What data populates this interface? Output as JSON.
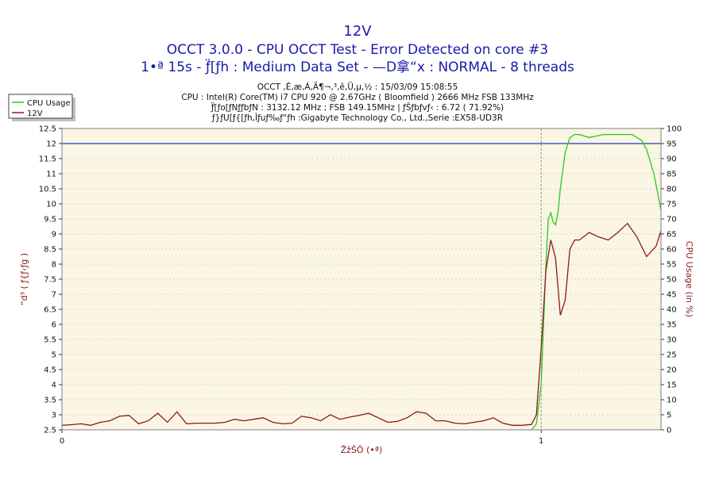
{
  "chart_data": {
    "type": "line",
    "title": "12V",
    "subtitle": "OCCT 3.0.0 - CPU OCCT Test - Error Detected on core #3",
    "subtitle2": "1•ª 15s - ƒ̈[ƒh : Medium Data Set - —D拿“x : NORMAL - 8 threads",
    "info_lines": [
      "OCCT ‚É‚æ‚Á‚Ä¶¬‚³‚ê‚Ü‚µ‚½ : 15/03/09 15:08:55",
      "CPU : Intel(R) Core(TM) i7 CPU 920 @ 2.67GHz ( Bloomfield ) 2666 MHz FSB 133MHz",
      "ƒ̈[ƒo[ƒNƒ̧ƒbƒN : 3132.12 MHz ; FSB 149.15MHz | ƒŠƒbƒvƒ‹ : 6.72 ( 71.92%)",
      "ƒ}ƒU[ƒ{[ƒh,Ìƒuƒ‰ƒ“ƒh :Gigabyte Technology Co., Ltd.,Serie :EX58-UD3R"
    ],
    "xlabel": "ŽžŠÔ (•ª)",
    "ylabel_left": "“d³ ( ƒ{ƒ‹ƒg )",
    "ylabel_right": "CPU Usage (in %)",
    "xlim": [
      0,
      1.25
    ],
    "x_ticks": [
      "0",
      "1"
    ],
    "x_tick_values": [
      0,
      1
    ],
    "ylim_left": [
      2.5,
      12.5
    ],
    "left_ticks": [
      "2.5",
      "3",
      "3.5",
      "4",
      "4.5",
      "5",
      "5.5",
      "6",
      "6.5",
      "7",
      "7.5",
      "8",
      "8.5",
      "9",
      "9.5",
      "10",
      "10.5",
      "11",
      "11.5",
      "12",
      "12.5"
    ],
    "ylim_right": [
      0,
      100
    ],
    "right_ticks": [
      "0",
      "5",
      "10",
      "15",
      "20",
      "25",
      "30",
      "35",
      "40",
      "45",
      "50",
      "55",
      "60",
      "65",
      "70",
      "75",
      "80",
      "85",
      "90",
      "95",
      "100"
    ],
    "reference_line": {
      "value": 12,
      "color": "#1a3fb4"
    },
    "legend_position": "top-left",
    "grid": true,
    "series": [
      {
        "name": "CPU Usage",
        "axis": "right",
        "color": "#22cc22",
        "x": [
          0.98,
          0.99,
          1.0,
          1.005,
          1.01,
          1.015,
          1.02,
          1.025,
          1.03,
          1.035,
          1.04,
          1.05,
          1.06,
          1.07,
          1.08,
          1.1,
          1.13,
          1.16,
          1.19,
          1.2,
          1.21,
          1.22,
          1.235,
          1.25
        ],
        "y": [
          0,
          2,
          15,
          35,
          55,
          70,
          72,
          69,
          68,
          72,
          80,
          92,
          97,
          98,
          98,
          97,
          98,
          98,
          98,
          97,
          96,
          93,
          85,
          73
        ]
      },
      {
        "name": "12V",
        "axis": "left",
        "color": "#8b1a1a",
        "x": [
          0,
          0.02,
          0.04,
          0.06,
          0.08,
          0.1,
          0.12,
          0.14,
          0.16,
          0.18,
          0.2,
          0.22,
          0.24,
          0.26,
          0.28,
          0.3,
          0.32,
          0.34,
          0.36,
          0.38,
          0.4,
          0.42,
          0.44,
          0.46,
          0.48,
          0.5,
          0.52,
          0.54,
          0.56,
          0.58,
          0.6,
          0.62,
          0.64,
          0.66,
          0.68,
          0.7,
          0.72,
          0.74,
          0.76,
          0.78,
          0.8,
          0.82,
          0.84,
          0.86,
          0.88,
          0.9,
          0.92,
          0.94,
          0.96,
          0.98,
          0.99,
          1.0,
          1.01,
          1.02,
          1.03,
          1.04,
          1.05,
          1.06,
          1.07,
          1.08,
          1.1,
          1.12,
          1.14,
          1.16,
          1.18,
          1.2,
          1.22,
          1.24,
          1.25
        ],
        "y": [
          2.65,
          2.67,
          2.7,
          2.65,
          2.75,
          2.8,
          2.95,
          2.98,
          2.7,
          2.8,
          3.05,
          2.75,
          3.1,
          2.7,
          2.72,
          2.72,
          2.72,
          2.75,
          2.85,
          2.8,
          2.85,
          2.9,
          2.75,
          2.7,
          2.72,
          2.95,
          2.9,
          2.8,
          3.0,
          2.85,
          2.92,
          2.98,
          3.05,
          2.9,
          2.75,
          2.78,
          2.9,
          3.1,
          3.05,
          2.8,
          2.8,
          2.72,
          2.7,
          2.75,
          2.8,
          2.9,
          2.72,
          2.65,
          2.65,
          2.68,
          3.0,
          5.2,
          7.8,
          8.8,
          8.2,
          6.3,
          6.8,
          8.5,
          8.8,
          8.8,
          9.05,
          8.9,
          8.8,
          9.05,
          9.35,
          8.9,
          8.25,
          8.6,
          9.1
        ]
      }
    ]
  }
}
